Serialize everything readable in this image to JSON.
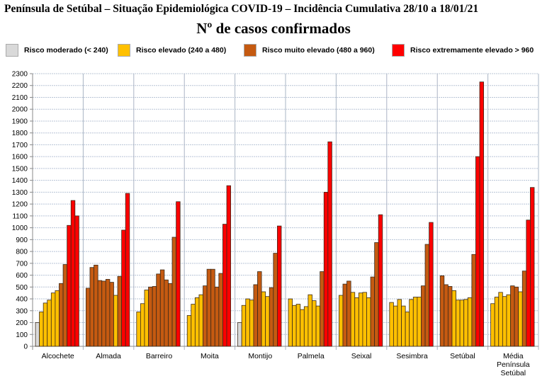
{
  "chart_data": {
    "type": "bar",
    "title": "Península de Setúbal – Situação Epidemiológica COVID-19 – Incidência Cumulativa  28/10 a 18/01/21",
    "subtitle": "Nº de casos confirmados",
    "xlabel": "",
    "ylabel": "",
    "ylim": [
      0,
      2300
    ],
    "ytick_step": 100,
    "grid": true,
    "legend_position": "top",
    "legend": [
      {
        "label": "Risco moderado (< 240)",
        "color": "#d9d9d9",
        "max": 240
      },
      {
        "label": "Risco elevado (240 a 480)",
        "color": "#ffc000",
        "max": 480
      },
      {
        "label": "Risco muito elevado (480 a 960)",
        "color": "#c55a11",
        "max": 960
      },
      {
        "label": "Risco extremamente elevado > 960",
        "color": "#ff0000",
        "max": 100000
      }
    ],
    "categories": [
      "Alcochete",
      "Almada",
      "Barreiro",
      "Moita",
      "Montijo",
      "Palmela",
      "Seixal",
      "Sesimbra",
      "Setúbal",
      "Média Península Setúbal"
    ],
    "category_lines": [
      [
        "Alcochete"
      ],
      [
        "Almada"
      ],
      [
        "Barreiro"
      ],
      [
        "Moita"
      ],
      [
        "Montijo"
      ],
      [
        "Palmela"
      ],
      [
        "Seixal"
      ],
      [
        "Sesimbra"
      ],
      [
        "Setúbal"
      ],
      [
        "Média",
        "Península",
        "Setúbal"
      ]
    ],
    "series_values": [
      [
        200,
        290,
        365,
        390,
        450,
        470,
        530,
        690,
        1020,
        1230,
        1100
      ],
      [
        490,
        665,
        685,
        555,
        550,
        565,
        540,
        430,
        590,
        980,
        1290
      ],
      [
        290,
        360,
        475,
        500,
        505,
        610,
        645,
        560,
        530,
        920,
        1220
      ],
      [
        260,
        355,
        410,
        435,
        510,
        650,
        650,
        500,
        615,
        1030,
        1355
      ],
      [
        200,
        345,
        400,
        390,
        520,
        630,
        460,
        420,
        495,
        785,
        1015
      ],
      [
        400,
        345,
        355,
        310,
        335,
        435,
        385,
        340,
        630,
        1300,
        1725
      ],
      [
        430,
        525,
        550,
        455,
        410,
        450,
        455,
        410,
        585,
        875,
        1110
      ],
      [
        370,
        340,
        395,
        340,
        290,
        395,
        415,
        415,
        510,
        860,
        1045
      ],
      [
        595,
        520,
        505,
        470,
        390,
        390,
        395,
        410,
        775,
        1600,
        2230
      ],
      [
        360,
        415,
        455,
        420,
        435,
        510,
        500,
        460,
        635,
        1065,
        1340
      ]
    ]
  }
}
